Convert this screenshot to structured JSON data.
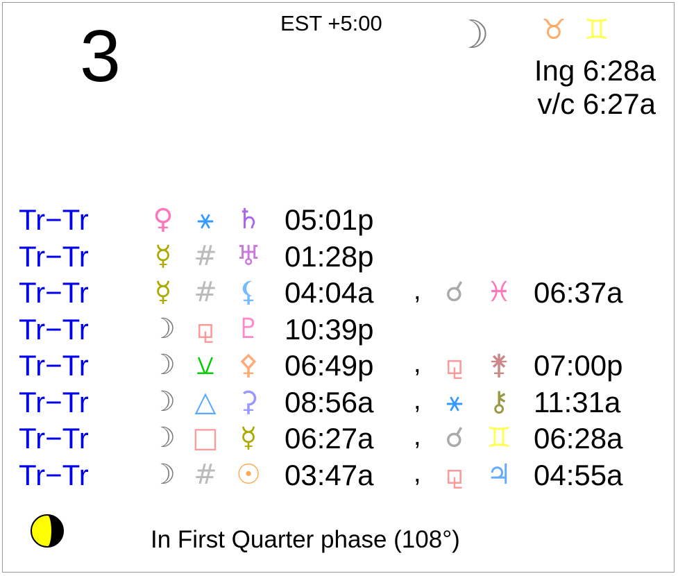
{
  "day": "3",
  "timezone": "EST +5:00",
  "moon_ingress": {
    "planet_glyph": "☽",
    "planet_color": "#808080",
    "from_sign": "♉",
    "from_color": "#ffaa66",
    "to_sign": "♊",
    "to_color": "#ffff55",
    "ingress": "Ing 6:28a",
    "void_of_course": "v/c 6:27a"
  },
  "aspects": [
    {
      "label": "Tr−Tr",
      "p1": "♀",
      "p1c": "#ff77bb",
      "asp": "⚹",
      "ac": "#3399ff",
      "p2": "♄",
      "p2c": "#aa66ee",
      "time": "05:01p"
    },
    {
      "label": "Tr−Tr",
      "p1": "☿",
      "p1c": "#aaaa00",
      "asp": "#",
      "ac": "#bbbbbb",
      "p2": "♅",
      "p2c": "#cc77dd",
      "time": "01:28p"
    },
    {
      "label": "Tr−Tr",
      "p1": "☿",
      "p1c": "#aaaa00",
      "asp": "#",
      "ac": "#bbbbbb",
      "p2": "⚸",
      "p2c": "#77bbff",
      "time": "04:04a",
      "asp2": "☌",
      "a2c": "#aaaaaa",
      "p3": "♓",
      "p3c": "#ff77bb",
      "time2": "06:37a"
    },
    {
      "label": "Tr−Tr",
      "p1": "☽",
      "p1c": "#777777",
      "asp": "⚼",
      "ac": "#ff9999",
      "p2": "♇",
      "p2c": "#ff88cc",
      "time": "10:39p"
    },
    {
      "label": "Tr−Tr",
      "p1": "☽",
      "p1c": "#777777",
      "asp": "⚺",
      "ac": "#00cc00",
      "p2": "⚴",
      "p2c": "#ffaa77",
      "time": "06:49p",
      "asp2": "⚼",
      "a2c": "#ff9999",
      "p3": "⚵",
      "p3c": "#cc8888",
      "time2": "07:00p"
    },
    {
      "label": "Tr−Tr",
      "p1": "☽",
      "p1c": "#777777",
      "asp": "△",
      "ac": "#55aaff",
      "p2": "⚳",
      "p2c": "#9999ff",
      "time": "08:56a",
      "asp2": "⚹",
      "a2c": "#3399ff",
      "p3": "⚷",
      "p3c": "#999944",
      "time2": "11:31a"
    },
    {
      "label": "Tr−Tr",
      "p1": "☽",
      "p1c": "#777777",
      "asp": "□",
      "ac": "#ff9999",
      "p2": "☿",
      "p2c": "#aaaa00",
      "time": "06:27a",
      "asp2": "☌",
      "a2c": "#aaaaaa",
      "p3": "♊",
      "p3c": "#ffff55",
      "time2": "06:28a"
    },
    {
      "label": "Tr−Tr",
      "p1": "☽",
      "p1c": "#777777",
      "asp": "#",
      "ac": "#bbbbbb",
      "p2": "☉",
      "p2c": "#ffaa55",
      "time": "03:47a",
      "asp2": "⚼",
      "a2c": "#ff9999",
      "p3": "♃",
      "p3c": "#66aaff",
      "time2": "04:55a"
    }
  ],
  "separator": ",",
  "phase": {
    "icon": "first-quarter-moon-icon",
    "text": "In First Quarter phase (108°)",
    "lit_color": "#ffff00"
  }
}
